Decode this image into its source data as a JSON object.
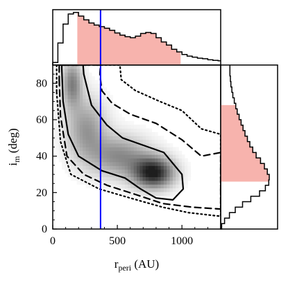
{
  "chart_data": {
    "type": "heatmap",
    "xlabel": "r",
    "xlabel_sub": "peri",
    "xlabel_unit": " (AU)",
    "ylabel": "i",
    "ylabel_sub": "m",
    "ylabel_unit": " (deg)",
    "xlim": [
      0,
      1300
    ],
    "ylim": [
      0,
      90
    ],
    "xticks": [
      0,
      500,
      1000
    ],
    "xtick_labels": [
      "0",
      "500",
      "1000"
    ],
    "yticks": [
      0,
      20,
      40,
      60,
      80
    ],
    "ytick_labels": [
      "0",
      "20",
      "40",
      "60",
      "80"
    ],
    "vertical_line": {
      "x": 370,
      "color": "#0000ff"
    },
    "density_peaks": [
      {
        "x": 150,
        "y": 80,
        "sigma_x": 55,
        "sigma_y": 9,
        "amp": 0.55
      },
      {
        "x": 260,
        "y": 55,
        "sigma_x": 110,
        "sigma_y": 12,
        "amp": 0.45
      },
      {
        "x": 520,
        "y": 40,
        "sigma_x": 160,
        "sigma_y": 8,
        "amp": 0.5
      },
      {
        "x": 780,
        "y": 31,
        "sigma_x": 110,
        "sigma_y": 6,
        "amp": 1.0
      }
    ],
    "contours": [
      {
        "style": "solid",
        "points": [
          [
            70,
            88
          ],
          [
            80,
            70
          ],
          [
            120,
            52
          ],
          [
            200,
            40
          ],
          [
            380,
            32
          ],
          [
            560,
            28
          ],
          [
            680,
            22
          ],
          [
            800,
            17
          ],
          [
            930,
            16
          ],
          [
            1010,
            22
          ],
          [
            1000,
            30
          ],
          [
            860,
            42
          ],
          [
            700,
            46
          ],
          [
            540,
            50
          ],
          [
            420,
            57
          ],
          [
            300,
            68
          ],
          [
            240,
            85
          ],
          [
            235,
            90
          ],
          [
            70,
            90
          ]
        ]
      },
      {
        "style": "dashed",
        "points": [
          [
            50,
            82
          ],
          [
            60,
            62
          ],
          [
            110,
            40
          ],
          [
            240,
            30
          ],
          [
            420,
            24
          ],
          [
            640,
            19
          ],
          [
            850,
            14
          ],
          [
            1080,
            12
          ],
          [
            1290,
            11
          ],
          [
            1300,
            11
          ],
          [
            1300,
            42
          ],
          [
            1150,
            40
          ],
          [
            1000,
            49
          ],
          [
            800,
            58
          ],
          [
            600,
            63
          ],
          [
            460,
            69
          ],
          [
            380,
            76
          ],
          [
            365,
            85
          ],
          [
            370,
            90
          ],
          [
            50,
            90
          ]
        ]
      },
      {
        "style": "dotted",
        "points": [
          [
            30,
            75
          ],
          [
            60,
            48
          ],
          [
            140,
            30
          ],
          [
            360,
            22
          ],
          [
            600,
            17
          ],
          [
            850,
            12
          ],
          [
            1050,
            9
          ],
          [
            1300,
            7
          ],
          [
            1300,
            52
          ],
          [
            1150,
            55
          ],
          [
            1000,
            65
          ],
          [
            830,
            70
          ],
          [
            640,
            76
          ],
          [
            530,
            82
          ],
          [
            520,
            90
          ],
          [
            30,
            90
          ]
        ]
      }
    ],
    "top_marginal": {
      "bins_x": [
        0,
        40,
        80,
        120,
        160,
        200,
        240,
        280,
        320,
        360,
        400,
        440,
        480,
        520,
        560,
        600,
        640,
        680,
        720,
        760,
        800,
        840,
        880,
        920,
        960,
        1000,
        1040,
        1080,
        1120,
        1160,
        1200,
        1240,
        1280,
        1300
      ],
      "counts": [
        0.05,
        0.42,
        0.78,
        0.97,
        1.0,
        0.93,
        0.86,
        0.8,
        0.76,
        0.73,
        0.7,
        0.66,
        0.61,
        0.57,
        0.54,
        0.52,
        0.55,
        0.6,
        0.62,
        0.6,
        0.52,
        0.44,
        0.38,
        0.3,
        0.25,
        0.2,
        0.17,
        0.15,
        0.13,
        0.12,
        0.1,
        0.09,
        0.08
      ],
      "shaded_range": [
        190,
        990
      ],
      "shade_color": "#f7b3ad"
    },
    "right_marginal": {
      "bins_y": [
        0,
        3,
        6,
        9,
        12,
        15,
        18,
        21,
        24,
        27,
        30,
        33,
        36,
        39,
        42,
        45,
        48,
        51,
        54,
        57,
        60,
        63,
        66,
        69,
        72,
        75,
        78,
        81,
        84,
        87,
        90
      ],
      "counts": [
        0.02,
        0.08,
        0.18,
        0.3,
        0.45,
        0.62,
        0.8,
        0.92,
        0.99,
        1.0,
        0.96,
        0.9,
        0.82,
        0.73,
        0.66,
        0.6,
        0.55,
        0.5,
        0.46,
        0.42,
        0.38,
        0.34,
        0.31,
        0.28,
        0.25,
        0.23,
        0.21,
        0.2,
        0.19,
        0.19
      ],
      "shaded_range": [
        26,
        68
      ],
      "shade_color": "#f7b3ad"
    }
  }
}
